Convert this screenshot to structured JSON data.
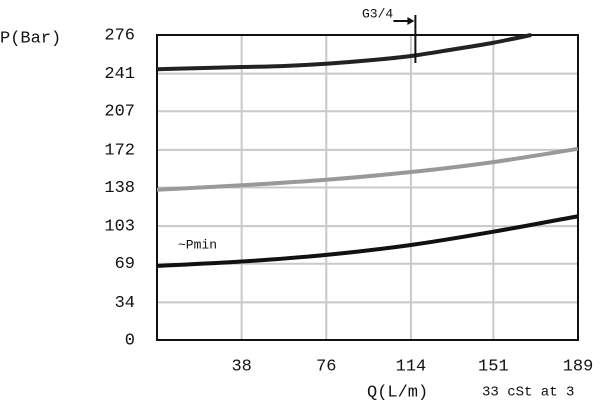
{
  "chart_data": {
    "type": "line",
    "y_label": "P(Bar)",
    "x_label": "Q(L/m)",
    "note": "33 cSt at 3",
    "xlim": [
      0,
      189
    ],
    "xticks": [
      38,
      76,
      114,
      151,
      189
    ],
    "ylim": [
      0,
      276
    ],
    "yticks": [
      0,
      34,
      69,
      103,
      138,
      172,
      207,
      241,
      276
    ],
    "grid": true,
    "series": [
      {
        "color": "#222222",
        "x": [
          0,
          19,
          38,
          57,
          76,
          95,
          114,
          133,
          151,
          168
        ],
        "values": [
          245,
          246,
          247,
          248,
          250,
          253,
          257,
          263,
          269,
          276
        ]
      },
      {
        "color": "#999999",
        "x": [
          0,
          38,
          76,
          114,
          151,
          189
        ],
        "values": [
          136,
          140,
          145,
          152,
          161,
          173
        ]
      },
      {
        "color": "#111111",
        "x": [
          0,
          38,
          76,
          114,
          151,
          189
        ],
        "values": [
          67,
          71,
          77,
          86,
          98,
          112
        ]
      }
    ],
    "annotations": [
      {
        "text": "~Pmin"
      },
      {
        "text": "G3/4",
        "x": 116
      }
    ]
  }
}
